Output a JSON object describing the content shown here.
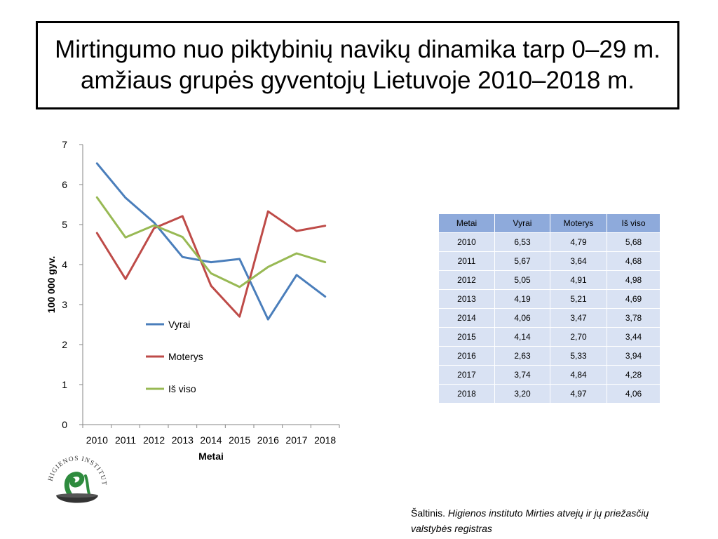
{
  "title": "Mirtingumo nuo piktybinių navikų dinamika tarp 0–29 m. amžiaus grupės gyventojų Lietuvoje 2010–2018 m.",
  "chart_data": {
    "type": "line",
    "x": [
      2010,
      2011,
      2012,
      2013,
      2014,
      2015,
      2016,
      2017,
      2018
    ],
    "series": [
      {
        "name": "Vyrai",
        "color": "#4a7ebb",
        "values": [
          6.53,
          5.67,
          5.05,
          4.19,
          4.06,
          4.14,
          2.63,
          3.74,
          3.2
        ]
      },
      {
        "name": "Moterys",
        "color": "#be4b48",
        "values": [
          4.79,
          3.64,
          4.91,
          5.21,
          3.47,
          2.7,
          5.33,
          4.84,
          4.97
        ]
      },
      {
        "name": "Iš viso",
        "color": "#98b954",
        "values": [
          5.68,
          4.68,
          4.98,
          4.69,
          3.78,
          3.44,
          3.94,
          4.28,
          4.06
        ]
      }
    ],
    "xlabel": "Metai",
    "ylabel": "100 000 gyv.",
    "ylim": [
      0,
      7
    ],
    "yticks": [
      0,
      1,
      2,
      3,
      4,
      5,
      6,
      7
    ],
    "grid": false,
    "legend_position": "inside-left"
  },
  "table": {
    "headers": [
      "Metai",
      "Vyrai",
      "Moterys",
      "Iš viso"
    ],
    "rows": [
      [
        "2010",
        "6,53",
        "4,79",
        "5,68"
      ],
      [
        "2011",
        "5,67",
        "3,64",
        "4,68"
      ],
      [
        "2012",
        "5,05",
        "4,91",
        "4,98"
      ],
      [
        "2013",
        "4,19",
        "5,21",
        "4,69"
      ],
      [
        "2014",
        "4,06",
        "3,47",
        "3,78"
      ],
      [
        "2015",
        "4,14",
        "2,70",
        "3,44"
      ],
      [
        "2016",
        "2,63",
        "5,33",
        "3,94"
      ],
      [
        "2017",
        "3,74",
        "4,84",
        "4,28"
      ],
      [
        "2018",
        "3,20",
        "4,97",
        "4,06"
      ]
    ],
    "header_color": "#8eaadb",
    "cell_color": "#d9e2f3"
  },
  "logo": {
    "text": "HIGIENOS INSTITUTAS",
    "colors": {
      "snake": "#2e8b3e",
      "bowl": "#333333"
    }
  },
  "source": {
    "prefix": "Šaltinis. ",
    "italic_line1": "Higienos instituto  Mirties atvejų ir jų priežasčių",
    "italic_line2": " valstybės registras"
  }
}
